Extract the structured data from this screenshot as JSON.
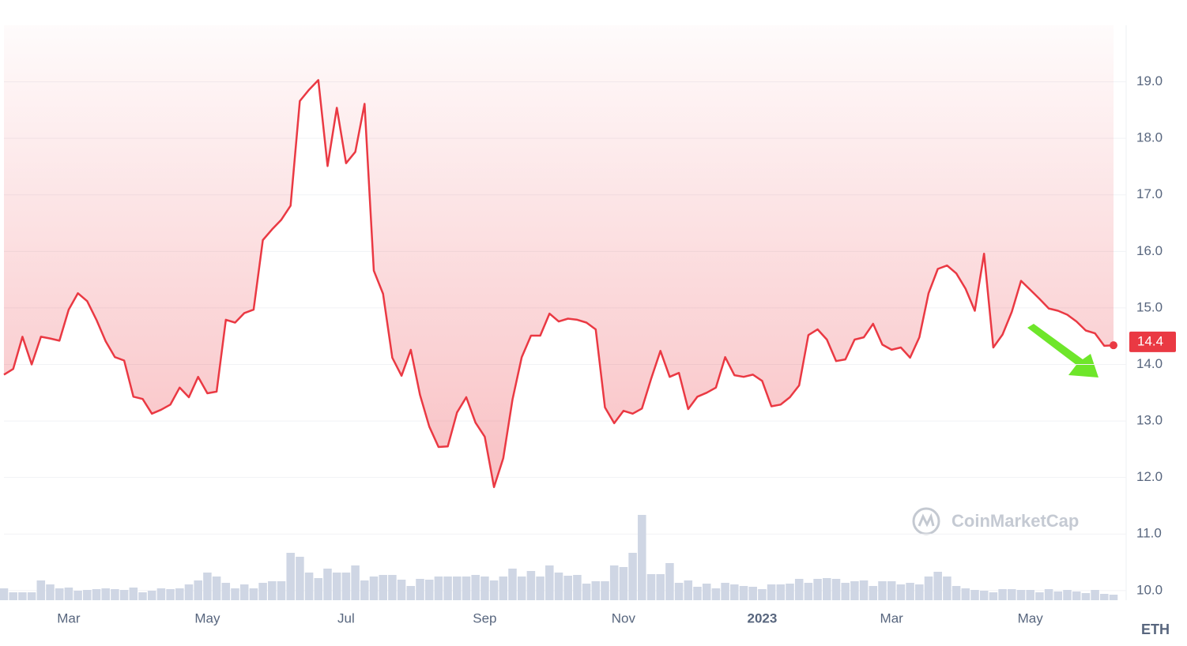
{
  "chart_data": {
    "type": "line",
    "categories": [
      null,
      null,
      null,
      null,
      null,
      null,
      null,
      "Mar",
      null,
      null,
      null,
      null,
      null,
      null,
      null,
      null,
      null,
      null,
      null,
      null,
      null,
      null,
      "May",
      null,
      null,
      null,
      null,
      null,
      null,
      null,
      null,
      null,
      null,
      null,
      null,
      null,
      null,
      "Jul",
      null,
      null,
      null,
      null,
      null,
      null,
      null,
      null,
      null,
      null,
      null,
      null,
      null,
      null,
      "Sep",
      null,
      null,
      null,
      null,
      null,
      null,
      null,
      null,
      null,
      null,
      null,
      null,
      null,
      null,
      "Nov",
      null,
      null,
      null,
      null,
      null,
      null,
      null,
      null,
      null,
      null,
      null,
      null,
      null,
      null,
      "2023",
      null,
      null,
      null,
      null,
      null,
      null,
      null,
      null,
      null,
      null,
      null,
      null,
      null,
      "Mar",
      null,
      null,
      null,
      null,
      null,
      null,
      null,
      null,
      null,
      null,
      null,
      null,
      null,
      null,
      "May",
      null,
      null,
      null,
      null,
      null,
      null,
      null,
      null,
      null
    ],
    "series": [
      {
        "color": "#ea3943",
        "values": [
          13.82,
          13.92,
          14.49,
          14.0,
          14.49,
          14.46,
          14.42,
          14.97,
          15.26,
          15.12,
          14.79,
          14.41,
          14.13,
          14.07,
          13.43,
          13.39,
          13.13,
          13.2,
          13.29,
          13.59,
          13.42,
          13.78,
          13.49,
          13.52,
          14.79,
          14.74,
          14.91,
          14.97,
          16.2,
          16.39,
          16.56,
          16.81,
          18.66,
          18.86,
          19.03,
          17.51,
          18.54,
          17.56,
          17.76,
          18.61,
          15.66,
          15.25,
          14.12,
          13.8,
          14.26,
          13.46,
          12.9,
          12.54,
          12.55,
          13.15,
          13.42,
          12.97,
          12.72,
          11.83,
          12.34,
          13.38,
          14.13,
          14.51,
          14.51,
          14.9,
          14.76,
          14.81,
          14.79,
          14.74,
          14.62,
          13.24,
          12.96,
          13.18,
          13.13,
          13.22,
          13.75,
          14.24,
          13.78,
          13.85,
          13.21,
          13.43,
          13.5,
          13.59,
          14.13,
          13.81,
          13.78,
          13.82,
          13.71,
          13.26,
          13.29,
          13.42,
          13.63,
          14.52,
          14.62,
          14.44,
          14.06,
          14.09,
          14.44,
          14.48,
          14.72,
          14.35,
          14.26,
          14.3,
          14.12,
          14.48,
          15.26,
          15.69,
          15.75,
          15.61,
          15.34,
          14.95,
          15.96,
          14.3,
          14.53,
          14.93,
          15.48,
          15.32,
          15.16,
          14.99,
          14.95,
          14.88,
          14.76,
          14.6,
          14.55,
          14.33,
          14.34
        ]
      }
    ],
    "volume": [
      15,
      10,
      10,
      10,
      25,
      20,
      15,
      16,
      12,
      13,
      14,
      15,
      14,
      13,
      16,
      10,
      12,
      15,
      14,
      15,
      20,
      25,
      35,
      30,
      22,
      15,
      20,
      15,
      22,
      24,
      24,
      60,
      55,
      35,
      28,
      40,
      35,
      35,
      44,
      25,
      30,
      32,
      32,
      26,
      18,
      27,
      26,
      30,
      30,
      30,
      30,
      32,
      30,
      25,
      30,
      40,
      30,
      37,
      30,
      44,
      35,
      31,
      32,
      21,
      24,
      24,
      44,
      42,
      60,
      108,
      33,
      33,
      47,
      22,
      25,
      17,
      21,
      15,
      22,
      20,
      18,
      17,
      14,
      20,
      20,
      21,
      27,
      22,
      27,
      28,
      27,
      22,
      24,
      25,
      18,
      24,
      24,
      20,
      22,
      20,
      30,
      36,
      30,
      18,
      15,
      13,
      12,
      10,
      14,
      14,
      13,
      13,
      10,
      14,
      11,
      13,
      11,
      9,
      13,
      8,
      7
    ],
    "volume_color": "#cfd6e4",
    "current_price": 14.4,
    "currency": "ETH",
    "watermark": "CoinMarketCap",
    "ylim": [
      9.83,
      20
    ],
    "yticks": [
      {
        "value": 10,
        "label": "10.0"
      },
      {
        "value": 11,
        "label": "11.0"
      },
      {
        "value": 12,
        "label": "12.0"
      },
      {
        "value": 13,
        "label": "13.0"
      },
      {
        "value": 14,
        "label": "14.0"
      },
      {
        "value": 15,
        "label": "15.0"
      },
      {
        "value": 16,
        "label": "16.0"
      },
      {
        "value": 17,
        "label": "17.0"
      },
      {
        "value": 18,
        "label": "18.0"
      },
      {
        "value": 19,
        "label": "19.0"
      }
    ],
    "grid": true
  }
}
